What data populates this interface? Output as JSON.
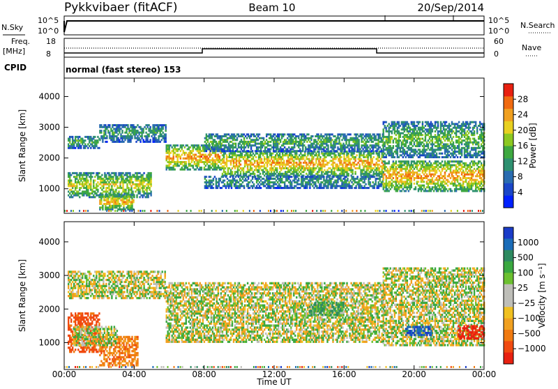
{
  "header": {
    "station": "Pykkvibaer (fitACF)",
    "beam": "Beam 10",
    "date": "20/Sep/2014"
  },
  "strips": {
    "nsky_label": "N.Sky",
    "nsky_ticks": [
      "10^5",
      "10^0"
    ],
    "nsearch_label": "N.Search",
    "nsearch_ticks": [
      "10^5",
      "10^0"
    ],
    "freq_label_1": "Freq.",
    "freq_label_2": "[MHz]",
    "freq_ticks": [
      "18",
      "8"
    ],
    "nave_label": "Nave",
    "nave_ticks": [
      "60",
      "0"
    ],
    "cpid_label": "CPID",
    "cpid_value": "normal (fast stereo) 153"
  },
  "chart_data": [
    {
      "type": "heatmap",
      "name": "power",
      "ylabel": "Slant Range [km]",
      "ylim": [
        200,
        4600
      ],
      "yticks": [
        "4000",
        "3000",
        "2000",
        "1000"
      ],
      "xlabel": "Time UT",
      "xticks": [
        "00:00",
        "04:00",
        "08:00",
        "12:00",
        "16:00",
        "20:00",
        "00:00"
      ],
      "xrange_hours": [
        0,
        24
      ],
      "colorbar": {
        "label": "Power [dB]",
        "ticks": [
          "28",
          "24",
          "20",
          "16",
          "12",
          "8",
          "4"
        ],
        "colors": [
          "#0020ff",
          "#1a46c8",
          "#2a6cb0",
          "#2e9070",
          "#3ea840",
          "#8cc820",
          "#e8d020",
          "#f0a020",
          "#f06a10",
          "#e82010"
        ]
      },
      "echo_bands": [
        {
          "t": [
            0.2,
            2.0
          ],
          "r": [
            2300,
            2700
          ],
          "level": 0.45
        },
        {
          "t": [
            2.0,
            5.8
          ],
          "r": [
            2500,
            3100
          ],
          "level": 0.4
        },
        {
          "t": [
            0.2,
            5.0
          ],
          "r": [
            700,
            1500
          ],
          "level": 0.65
        },
        {
          "t": [
            2.0,
            4.0
          ],
          "r": [
            300,
            800
          ],
          "level": 0.75
        },
        {
          "t": [
            5.8,
            9.0
          ],
          "r": [
            1600,
            2400
          ],
          "level": 0.8
        },
        {
          "t": [
            9.0,
            18.2
          ],
          "r": [
            1400,
            2200
          ],
          "level": 0.78
        },
        {
          "t": [
            8.0,
            18.2
          ],
          "r": [
            1000,
            1400
          ],
          "level": 0.4
        },
        {
          "t": [
            8.0,
            18.2
          ],
          "r": [
            2200,
            2800
          ],
          "level": 0.45
        },
        {
          "t": [
            18.2,
            24.0
          ],
          "r": [
            900,
            1900
          ],
          "level": 0.8
        },
        {
          "t": [
            18.2,
            24.0
          ],
          "r": [
            2000,
            3200
          ],
          "level": 0.5
        }
      ]
    },
    {
      "type": "heatmap",
      "name": "velocity",
      "ylabel": "Slant Range [km]",
      "ylim": [
        200,
        4600
      ],
      "yticks": [
        "4000",
        "3000",
        "2000",
        "1000"
      ],
      "xlabel": "Time UT",
      "xticks": [
        "00:00",
        "04:00",
        "08:00",
        "12:00",
        "16:00",
        "20:00",
        "00:00"
      ],
      "xrange_hours": [
        0,
        24
      ],
      "colorbar": {
        "label": "Velocity [m s⁻¹]",
        "ticks": [
          "1000",
          "500",
          "100",
          "25",
          "−25",
          "−100",
          "−500",
          "−1000"
        ],
        "colors": [
          "#1a3cc8",
          "#1a6cb8",
          "#2e8a60",
          "#3aa840",
          "#6cc030",
          "#bebeb8",
          "#bebeb8",
          "#f0c020",
          "#f0a020",
          "#f07a10",
          "#f04a10",
          "#e82010"
        ]
      },
      "echo_bands": [
        {
          "t": [
            0.2,
            5.8
          ],
          "r": [
            2300,
            3100
          ],
          "v": 0
        },
        {
          "t": [
            0.2,
            2.0
          ],
          "r": [
            700,
            1900
          ],
          "v": -400
        },
        {
          "t": [
            2.0,
            4.2
          ],
          "r": [
            300,
            1200
          ],
          "v": -200
        },
        {
          "t": [
            0.5,
            3.0
          ],
          "r": [
            900,
            1500
          ],
          "v": 0
        },
        {
          "t": [
            5.8,
            18.2
          ],
          "r": [
            1000,
            2800
          ],
          "v": 0
        },
        {
          "t": [
            14.0,
            16.0
          ],
          "r": [
            1800,
            2200
          ],
          "v": 150
        },
        {
          "t": [
            18.2,
            24.0
          ],
          "r": [
            900,
            3200
          ],
          "v": 0
        },
        {
          "t": [
            19.5,
            21.0
          ],
          "r": [
            1200,
            1500
          ],
          "v": 800
        },
        {
          "t": [
            22.5,
            24.0
          ],
          "r": [
            1100,
            1500
          ],
          "v": -800
        }
      ]
    }
  ]
}
